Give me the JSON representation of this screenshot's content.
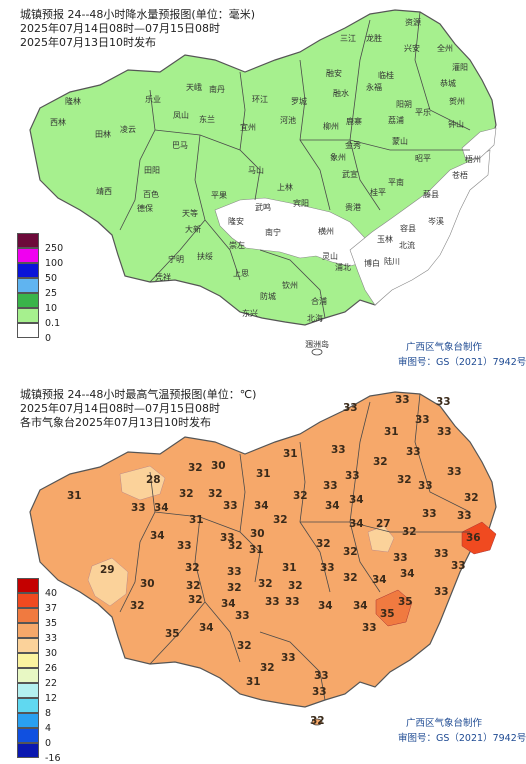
{
  "precip": {
    "title": "城镇预报 24--48小时降水量预报图(单位：毫米)",
    "period": "2025年07月14日08时—07月15日08时",
    "issued": "2025年07月13日10时发布",
    "legend": [
      {
        "label": "250",
        "color": "#6d0a3a"
      },
      {
        "label": "100",
        "color": "#f000f0"
      },
      {
        "label": "50",
        "color": "#0a14d8"
      },
      {
        "label": "25",
        "color": "#60b4f0"
      },
      {
        "label": "10",
        "color": "#3ab44a"
      },
      {
        "label": "0.1",
        "color": "#a6f08e"
      },
      {
        "label": "0",
        "color": "#ffffff"
      }
    ],
    "credit_org": "广西区气象台制作",
    "credit_no": "审图号：GS（2021）7942号",
    "cities": [
      "资源",
      "三江",
      "龙胜",
      "兴安",
      "全州",
      "灌阳",
      "融安",
      "临桂",
      "恭城",
      "隆林",
      "西林",
      "乐业",
      "天峨",
      "南丹",
      "环江",
      "罗城",
      "融水",
      "永福",
      "阳朔",
      "荔浦",
      "平乐",
      "贺州",
      "钟山",
      "田林",
      "凌云",
      "凤山",
      "东兰",
      "巴马",
      "宜州",
      "河池",
      "柳州",
      "鹿寨",
      "金秀",
      "蒙山",
      "昭平",
      "梧州",
      "苍梧",
      "田阳",
      "百色",
      "德保",
      "靖西",
      "平果",
      "马山",
      "上林",
      "宾阳",
      "武宣",
      "象州",
      "桂平",
      "平南",
      "藤县",
      "岑溪",
      "天等",
      "大新",
      "隆安",
      "武鸣",
      "南宁",
      "横州",
      "贵港",
      "容县",
      "玉林",
      "北流",
      "陆川",
      "博白",
      "崇左",
      "宁明",
      "凭祥",
      "扶绥",
      "上思",
      "防城",
      "钦州",
      "灵山",
      "浦北",
      "合浦",
      "北海",
      "东兴",
      "涠洲岛"
    ]
  },
  "temp": {
    "title": "城镇预报 24--48小时最高气温预报图(单位：℃)",
    "period": "2025年07月14日08时—07月15日08时",
    "issued": "各市气象台2025年07月13日10时发布",
    "legend": [
      {
        "label": "40",
        "color": "#c40000"
      },
      {
        "label": "37",
        "color": "#f04a20"
      },
      {
        "label": "35",
        "color": "#f07a40"
      },
      {
        "label": "33",
        "color": "#f6a86a"
      },
      {
        "label": "30",
        "color": "#fbd29a"
      },
      {
        "label": "26",
        "color": "#fbf3a0"
      },
      {
        "label": "22",
        "color": "#e8f8c4"
      },
      {
        "label": "12",
        "color": "#b4f0f0"
      },
      {
        "label": "8",
        "color": "#60d8f0"
      },
      {
        "label": "4",
        "color": "#2aa0f0"
      },
      {
        "label": "0",
        "color": "#1050e0"
      },
      {
        "label": "-16",
        "color": "#0a18b0"
      }
    ],
    "credit_org": "广西区气象台制作",
    "credit_no": "审图号：GS（2021）7942号",
    "values": [
      "33",
      "33",
      "33",
      "31",
      "33",
      "33",
      "32",
      "33",
      "33",
      "31",
      "31",
      "28",
      "32",
      "30",
      "31",
      "33",
      "33",
      "32",
      "32",
      "32",
      "33",
      "32",
      "33",
      "32",
      "34",
      "33",
      "34",
      "31",
      "33",
      "34",
      "32",
      "34",
      "33",
      "33",
      "34",
      "33",
      "31",
      "33",
      "32",
      "32",
      "32",
      "34",
      "32",
      "31",
      "33",
      "32",
      "27",
      "33",
      "33",
      "34",
      "36",
      "32",
      "32",
      "33",
      "29",
      "30",
      "30",
      "32",
      "34",
      "32",
      "34",
      "33",
      "33",
      "35",
      "33",
      "35",
      "35",
      "34",
      "34",
      "34",
      "32",
      "33",
      "32",
      "33",
      "33",
      "33",
      "33",
      "31",
      "33",
      "32",
      "32",
      "32",
      "32"
    ]
  }
}
